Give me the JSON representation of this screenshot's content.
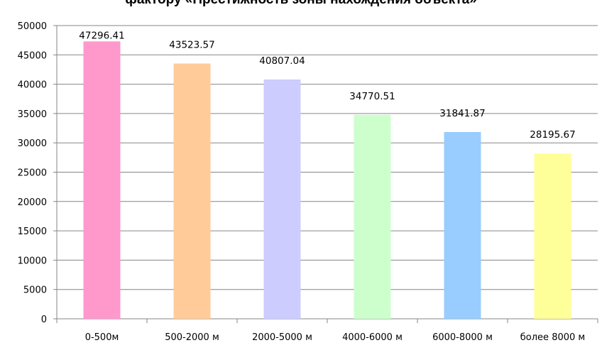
{
  "chart_data": {
    "type": "bar",
    "title": "фактору «Престижность зоны нахождения объекта»",
    "categories": [
      "0-500м",
      "500-2000 м",
      "2000-5000 м",
      "4000-6000 м",
      "6000-8000 м",
      "более 8000 м"
    ],
    "values": [
      47296.41,
      43523.57,
      40807.04,
      34770.51,
      31841.87,
      28195.67
    ],
    "data_labels": [
      "47296.41",
      "43523.57",
      "40807.04",
      "34770.51",
      "31841.87",
      "28195.67"
    ],
    "colors": [
      "#ff99cc",
      "#ffcc99",
      "#ccccff",
      "#ccffcc",
      "#99ccff",
      "#ffff99"
    ],
    "yticks": [
      "0",
      "5000",
      "10000",
      "15000",
      "20000",
      "25000",
      "30000",
      "35000",
      "40000",
      "45000",
      "50000"
    ],
    "ylim": [
      0,
      50000
    ],
    "grid": true,
    "gridline_color": "#868686",
    "legend": "none"
  }
}
